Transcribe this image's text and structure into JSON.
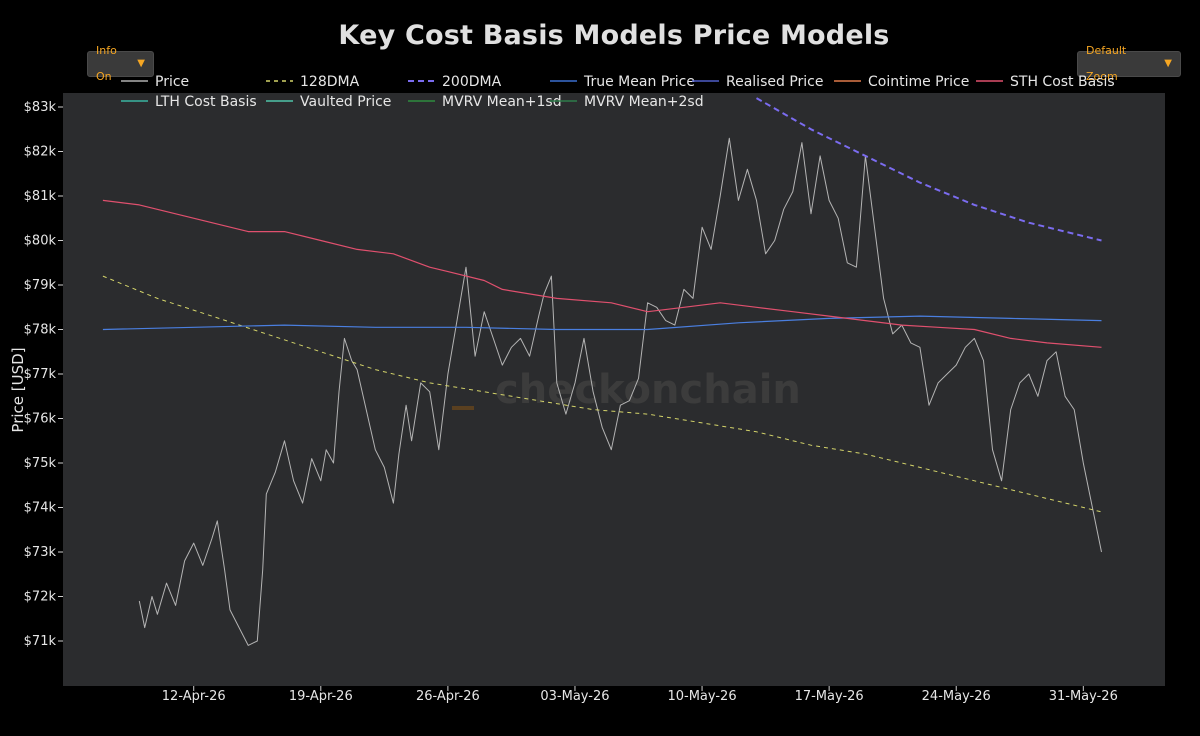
{
  "buttons": {
    "info_label": "Info On",
    "zoom_label": "Default Zoom"
  },
  "chart_data": {
    "type": "line",
    "title": "Key Cost Basis Models Price Models",
    "ylabel": "Price [USD]",
    "xlabel": "",
    "watermark": "checkonchain",
    "ylim": [
      70100,
      83250
    ],
    "x_range_days": [
      0,
      45
    ],
    "grid": false,
    "legend_position": "top",
    "y_ticks": [
      {
        "v": 71000,
        "label": "$71k"
      },
      {
        "v": 72000,
        "label": "$72k"
      },
      {
        "v": 73000,
        "label": "$73k"
      },
      {
        "v": 74000,
        "label": "$74k"
      },
      {
        "v": 75000,
        "label": "$75k"
      },
      {
        "v": 76000,
        "label": "$76k"
      },
      {
        "v": 77000,
        "label": "$77k"
      },
      {
        "v": 78000,
        "label": "$78k"
      },
      {
        "v": 79000,
        "label": "$79k"
      },
      {
        "v": 80000,
        "label": "$80k"
      },
      {
        "v": 81000,
        "label": "$81k"
      },
      {
        "v": 82000,
        "label": "$82k"
      },
      {
        "v": 83000,
        "label": "$83k"
      }
    ],
    "x_ticks": [
      {
        "d": 5,
        "label": "12-Apr-26"
      },
      {
        "d": 12,
        "label": "19-Apr-26"
      },
      {
        "d": 19,
        "label": "26-Apr-26"
      },
      {
        "d": 26,
        "label": "03-May-26"
      },
      {
        "d": 33,
        "label": "10-May-26"
      },
      {
        "d": 40,
        "label": "17-May-26"
      },
      {
        "d": 47,
        "label": "24-May-26"
      },
      {
        "d": 54,
        "label": "31-May-26"
      }
    ],
    "legend": [
      {
        "name": "Price",
        "color": "#b0b0b0",
        "dash": ""
      },
      {
        "name": "128DMA",
        "color": "#d4d46a",
        "dash": "4,4"
      },
      {
        "name": "200DMA",
        "color": "#7b6cf0",
        "dash": "6,4"
      },
      {
        "name": "True Mean Price",
        "color": "#3b6fd0",
        "dash": ""
      },
      {
        "name": "Realised Price",
        "color": "#4f5ec8",
        "dash": ""
      },
      {
        "name": "Cointime Price",
        "color": "#e07a4a",
        "dash": ""
      },
      {
        "name": "STH Cost Basis",
        "color": "#e0506e",
        "dash": ""
      },
      {
        "name": "LTH Cost Basis",
        "color": "#3ab4a0",
        "dash": ""
      },
      {
        "name": "Vaulted Price",
        "color": "#4fc4a8",
        "dash": ""
      },
      {
        "name": "MVRV Mean+1sd",
        "color": "#2e8b3e",
        "dash": ""
      },
      {
        "name": "MVRV Mean+2sd",
        "color": "#2e7d4a",
        "dash": ""
      }
    ],
    "series": [
      {
        "name": "Price",
        "color": "#b4b4b4",
        "width": 1,
        "dash": "",
        "points": [
          [
            2,
            71900
          ],
          [
            2.3,
            71300
          ],
          [
            2.7,
            72000
          ],
          [
            3,
            71600
          ],
          [
            3.5,
            72300
          ],
          [
            4,
            71800
          ],
          [
            4.5,
            72800
          ],
          [
            5,
            73200
          ],
          [
            5.5,
            72700
          ],
          [
            6,
            73300
          ],
          [
            6.3,
            73700
          ],
          [
            6.7,
            72600
          ],
          [
            7,
            71700
          ],
          [
            7.5,
            71300
          ],
          [
            8,
            70900
          ],
          [
            8.5,
            71000
          ],
          [
            8.8,
            72600
          ],
          [
            9,
            74300
          ],
          [
            9.5,
            74800
          ],
          [
            10,
            75500
          ],
          [
            10.5,
            74600
          ],
          [
            11,
            74100
          ],
          [
            11.5,
            75100
          ],
          [
            12,
            74600
          ],
          [
            12.3,
            75300
          ],
          [
            12.7,
            75000
          ],
          [
            13,
            76600
          ],
          [
            13.3,
            77800
          ],
          [
            13.7,
            77300
          ],
          [
            14,
            77100
          ],
          [
            14.5,
            76200
          ],
          [
            15,
            75300
          ],
          [
            15.5,
            74900
          ],
          [
            16,
            74100
          ],
          [
            16.3,
            75200
          ],
          [
            16.7,
            76300
          ],
          [
            17,
            75500
          ],
          [
            17.5,
            76800
          ],
          [
            18,
            76600
          ],
          [
            18.5,
            75300
          ],
          [
            19,
            77000
          ],
          [
            19.5,
            78200
          ],
          [
            20,
            79400
          ],
          [
            20.5,
            77400
          ],
          [
            21,
            78400
          ],
          [
            21.5,
            77800
          ],
          [
            22,
            77200
          ],
          [
            22.5,
            77600
          ],
          [
            23,
            77800
          ],
          [
            23.5,
            77400
          ],
          [
            24,
            78300
          ],
          [
            24.3,
            78800
          ],
          [
            24.7,
            79200
          ],
          [
            25,
            76800
          ],
          [
            25.5,
            76100
          ],
          [
            26,
            76800
          ],
          [
            26.5,
            77800
          ],
          [
            27,
            76600
          ],
          [
            27.5,
            75800
          ],
          [
            28,
            75300
          ],
          [
            28.5,
            76300
          ],
          [
            29,
            76400
          ],
          [
            29.5,
            76900
          ],
          [
            30,
            78600
          ],
          [
            30.5,
            78500
          ],
          [
            31,
            78200
          ],
          [
            31.5,
            78100
          ],
          [
            32,
            78900
          ],
          [
            32.5,
            78700
          ],
          [
            33,
            80300
          ],
          [
            33.5,
            79800
          ],
          [
            34,
            81000
          ],
          [
            34.5,
            82300
          ],
          [
            35,
            80900
          ],
          [
            35.5,
            81600
          ],
          [
            36,
            80900
          ],
          [
            36.5,
            79700
          ],
          [
            37,
            80000
          ],
          [
            37.5,
            80700
          ],
          [
            38,
            81100
          ],
          [
            38.5,
            82200
          ],
          [
            39,
            80600
          ],
          [
            39.5,
            81900
          ],
          [
            40,
            80900
          ],
          [
            40.5,
            80500
          ],
          [
            41,
            79500
          ],
          [
            41.5,
            79400
          ],
          [
            42,
            81900
          ],
          [
            42.5,
            80300
          ],
          [
            43,
            78700
          ],
          [
            43.5,
            77900
          ],
          [
            44,
            78100
          ],
          [
            44.5,
            77700
          ],
          [
            45,
            77600
          ],
          [
            45.5,
            76300
          ],
          [
            46,
            76800
          ],
          [
            46.5,
            77000
          ],
          [
            47,
            77200
          ],
          [
            47.5,
            77600
          ],
          [
            48,
            77800
          ],
          [
            48.5,
            77300
          ],
          [
            49,
            75300
          ],
          [
            49.5,
            74600
          ],
          [
            50,
            76200
          ],
          [
            50.5,
            76800
          ],
          [
            51,
            77000
          ],
          [
            51.5,
            76500
          ],
          [
            52,
            77300
          ],
          [
            52.5,
            77500
          ],
          [
            53,
            76500
          ],
          [
            53.5,
            76200
          ],
          [
            54,
            75000
          ],
          [
            54.5,
            74000
          ],
          [
            55,
            73000
          ]
        ]
      },
      {
        "name": "128DMA",
        "color": "#d4d46a",
        "width": 1,
        "dash": "4,4",
        "points": [
          [
            0,
            79200
          ],
          [
            3,
            78700
          ],
          [
            6,
            78300
          ],
          [
            9,
            77900
          ],
          [
            12,
            77500
          ],
          [
            15,
            77100
          ],
          [
            18,
            76800
          ],
          [
            21,
            76600
          ],
          [
            24,
            76400
          ],
          [
            27,
            76200
          ],
          [
            30,
            76100
          ],
          [
            33,
            75900
          ],
          [
            36,
            75700
          ],
          [
            39,
            75400
          ],
          [
            42,
            75200
          ],
          [
            45,
            74900
          ],
          [
            48,
            74600
          ],
          [
            51,
            74300
          ],
          [
            55,
            73900
          ]
        ]
      },
      {
        "name": "200DMA",
        "color": "#7b6cf0",
        "width": 2,
        "dash": "6,4",
        "points": [
          [
            36,
            83200
          ],
          [
            39,
            82500
          ],
          [
            42,
            81900
          ],
          [
            45,
            81300
          ],
          [
            48,
            80800
          ],
          [
            51,
            80400
          ],
          [
            55,
            80000
          ]
        ]
      },
      {
        "name": "True Mean Price",
        "color": "#4a7fe0",
        "width": 1.2,
        "dash": "",
        "points": [
          [
            0,
            78000
          ],
          [
            5,
            78050
          ],
          [
            10,
            78100
          ],
          [
            15,
            78050
          ],
          [
            20,
            78050
          ],
          [
            25,
            78000
          ],
          [
            30,
            78000
          ],
          [
            35,
            78150
          ],
          [
            40,
            78250
          ],
          [
            45,
            78300
          ],
          [
            50,
            78250
          ],
          [
            55,
            78200
          ]
        ]
      },
      {
        "name": "STH Cost Basis",
        "color": "#e0506e",
        "width": 1.2,
        "dash": "",
        "points": [
          [
            0,
            80900
          ],
          [
            2,
            80800
          ],
          [
            4,
            80600
          ],
          [
            6,
            80400
          ],
          [
            8,
            80200
          ],
          [
            10,
            80200
          ],
          [
            12,
            80000
          ],
          [
            14,
            79800
          ],
          [
            16,
            79700
          ],
          [
            18,
            79400
          ],
          [
            19,
            79300
          ],
          [
            21,
            79100
          ],
          [
            22,
            78900
          ],
          [
            25,
            78700
          ],
          [
            28,
            78600
          ],
          [
            30,
            78400
          ],
          [
            32,
            78500
          ],
          [
            34,
            78600
          ],
          [
            36,
            78500
          ],
          [
            38,
            78400
          ],
          [
            40,
            78300
          ],
          [
            42,
            78200
          ],
          [
            44,
            78100
          ],
          [
            46,
            78050
          ],
          [
            48,
            78000
          ],
          [
            50,
            77800
          ],
          [
            52,
            77700
          ],
          [
            55,
            77600
          ]
        ]
      }
    ]
  }
}
